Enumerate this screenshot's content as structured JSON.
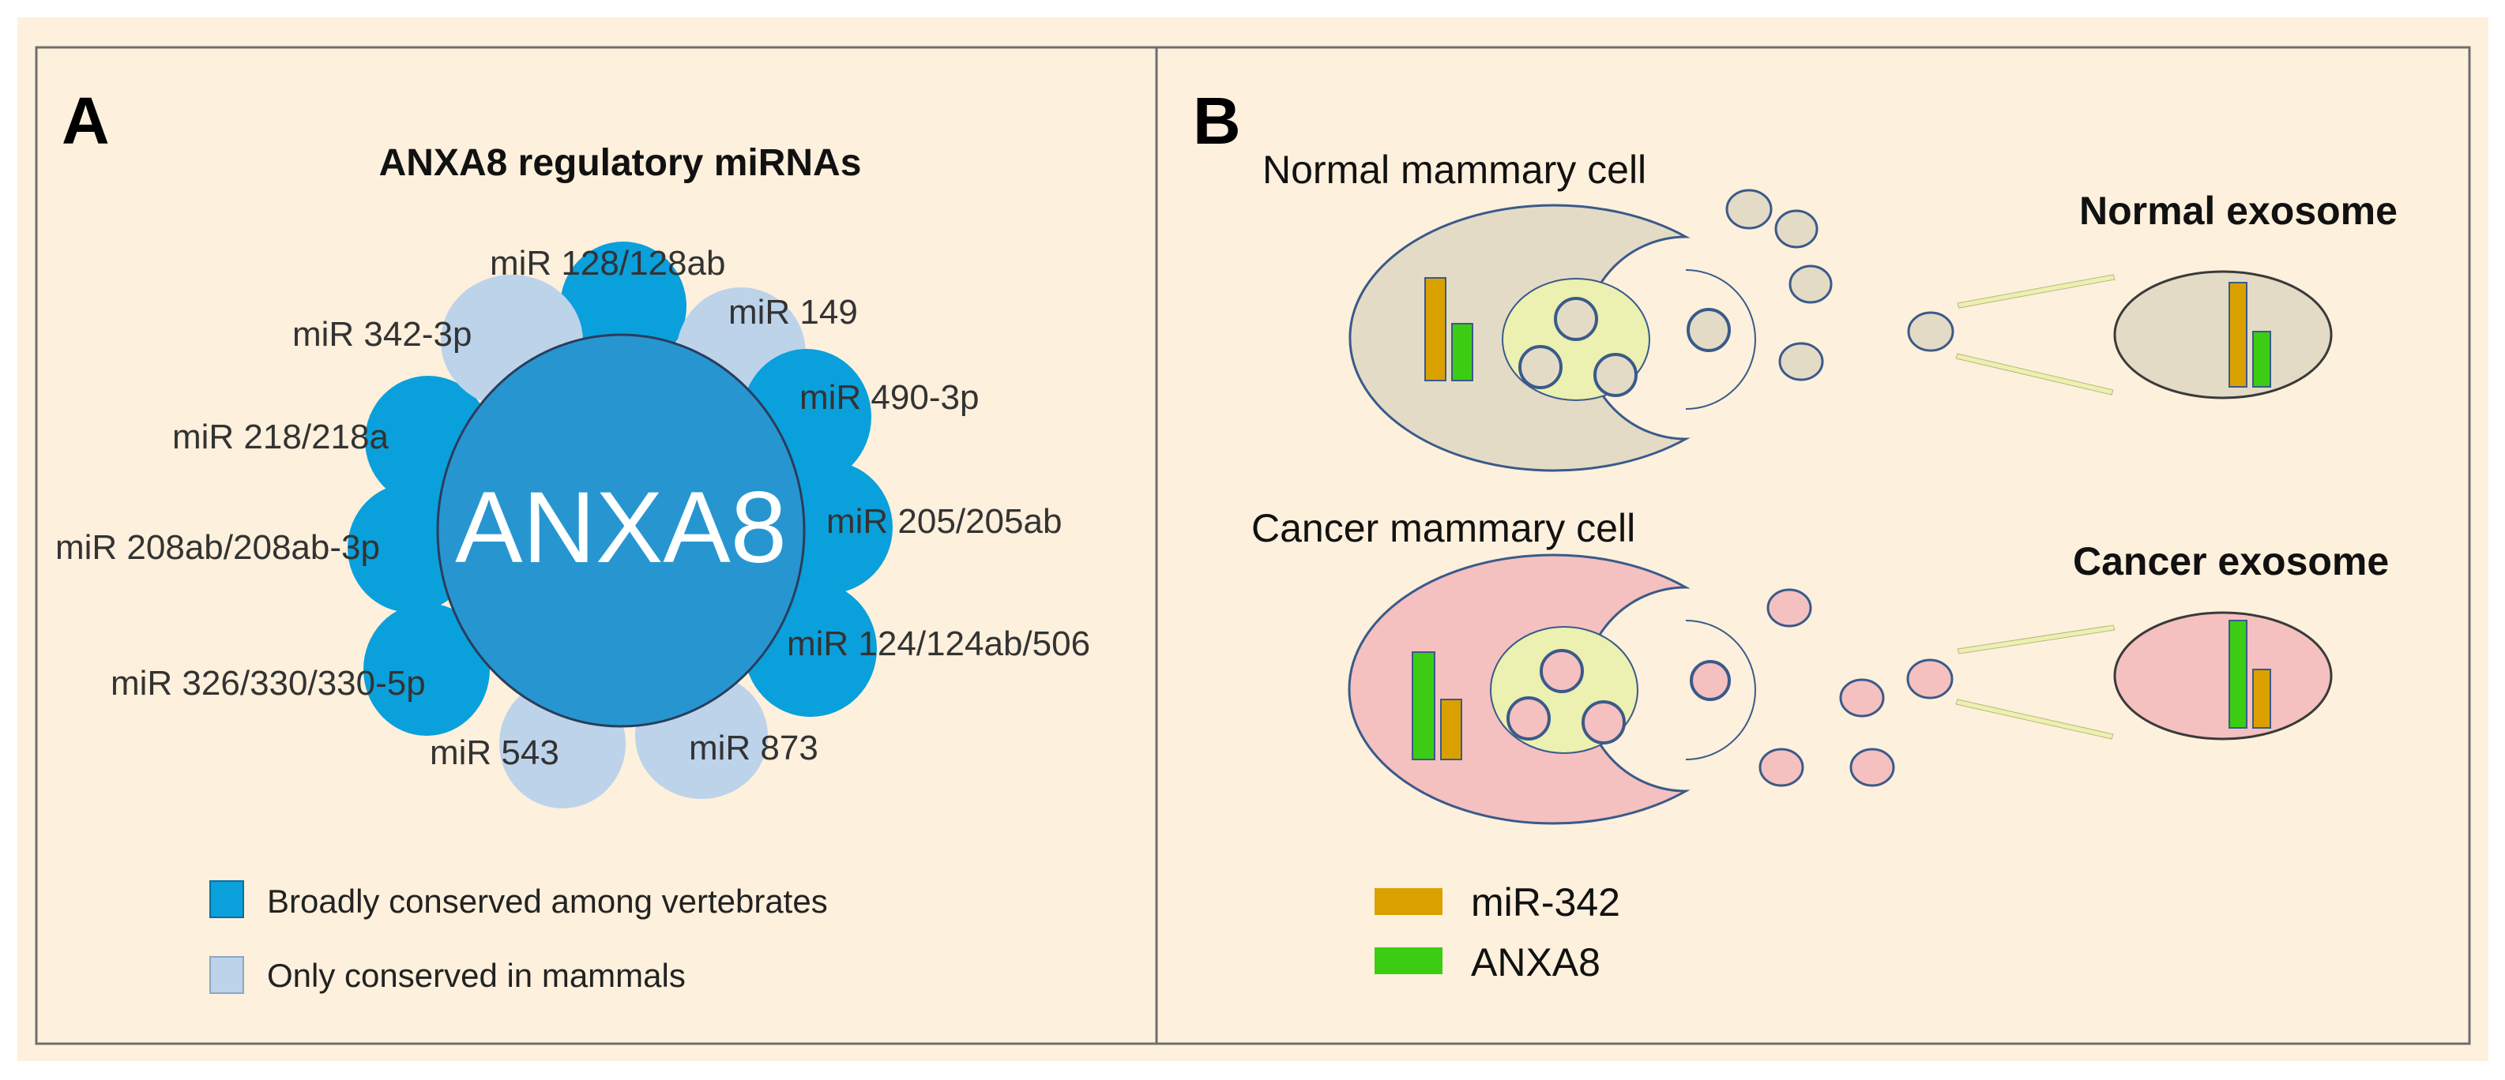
{
  "colors": {
    "background": "#fdf0dc",
    "broadly_conserved": "#0aa0dc",
    "mammal_only": "#bcd3ea",
    "center": "#2796d0",
    "normal_cell": "#e3dbc6",
    "cancer_cell": "#f5c0c0",
    "nucleus": "#ecf0b0",
    "mir342": "#daa000",
    "anxa8": "#3ccc14",
    "cell_outline": "#3a5a8a"
  },
  "panel_a": {
    "letter": "A",
    "title": "ANXA8 regulatory miRNAs",
    "center_label": "ANXA8",
    "mirnas": [
      {
        "label": "miR 128/128ab",
        "conservation": "broad"
      },
      {
        "label": "miR 149",
        "conservation": "mammal"
      },
      {
        "label": "miR 490-3p",
        "conservation": "broad"
      },
      {
        "label": "miR 205/205ab",
        "conservation": "broad"
      },
      {
        "label": "miR 124/124ab/506",
        "conservation": "broad"
      },
      {
        "label": "miR 873",
        "conservation": "mammal"
      },
      {
        "label": "miR 543",
        "conservation": "mammal"
      },
      {
        "label": "miR 326/330/330-5p",
        "conservation": "broad"
      },
      {
        "label": "miR 208ab/208ab-3p",
        "conservation": "broad"
      },
      {
        "label": "miR 218/218a",
        "conservation": "broad"
      },
      {
        "label": "miR 342-3p",
        "conservation": "mammal"
      }
    ],
    "legend": [
      {
        "label": "Broadly conserved among vertebrates",
        "color_key": "broadly_conserved"
      },
      {
        "label": "Only conserved in mammals",
        "color_key": "mammal_only"
      }
    ]
  },
  "panel_b": {
    "letter": "B",
    "normal_cell_title": "Normal mammary cell",
    "cancer_cell_title": "Cancer mammary cell",
    "normal_exosome_title": "Normal exosome",
    "cancer_exosome_title": "Cancer exosome",
    "levels": {
      "normal": {
        "mir342": "high",
        "anxa8": "low"
      },
      "cancer": {
        "mir342": "low",
        "anxa8": "high"
      }
    },
    "legend": [
      {
        "label": "miR-342",
        "color_key": "mir342"
      },
      {
        "label": "ANXA8",
        "color_key": "anxa8"
      }
    ]
  }
}
